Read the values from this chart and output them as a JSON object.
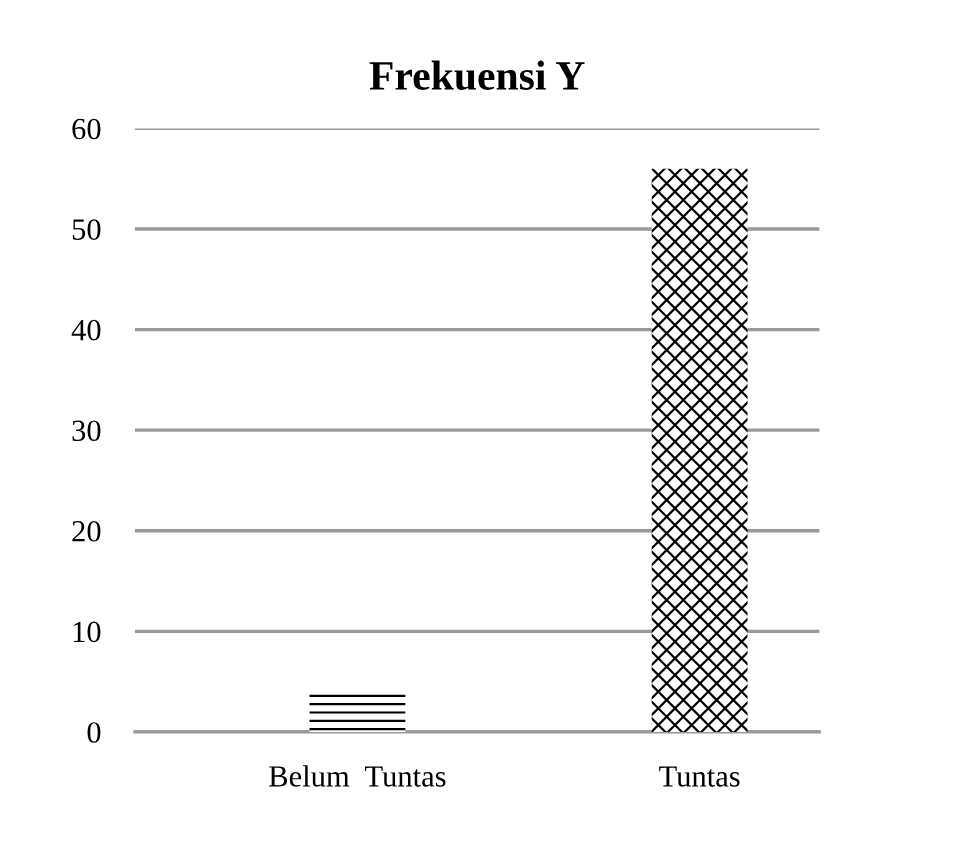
{
  "chart_data": {
    "type": "bar",
    "title": "Frekuensi Y",
    "categories": [
      "Belum  Tuntas",
      "Tuntas"
    ],
    "values": [
      4,
      56
    ],
    "colors": [
      "#000000",
      "#000000"
    ],
    "ylim": [
      0,
      60
    ],
    "yticks": [
      0,
      10,
      20,
      30,
      40,
      50,
      60
    ],
    "grid": "y"
  }
}
